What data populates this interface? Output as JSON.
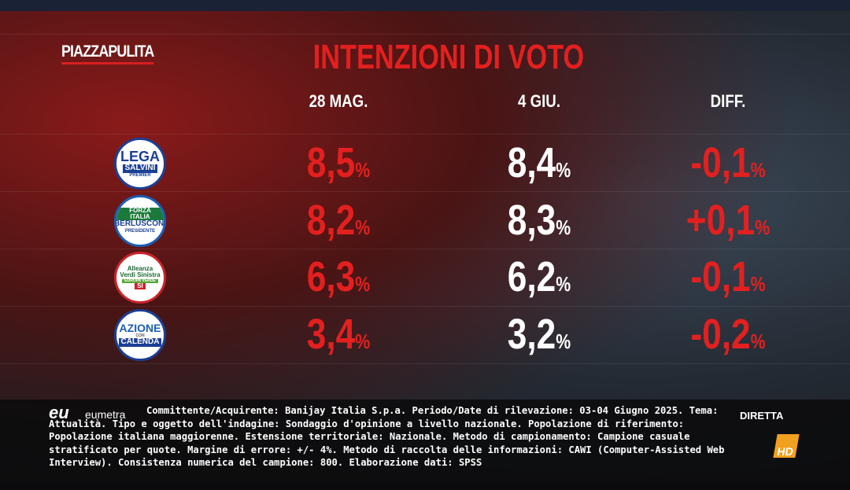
{
  "header": {
    "brand": "PIAZZAPULITA",
    "title": "INTENZIONI DI VOTO"
  },
  "table": {
    "columns": [
      "28 MAG.",
      "4 GIU.",
      "DIFF."
    ],
    "rows": [
      {
        "logo": [
          "LEGA",
          "SALVINI",
          "PREMIER"
        ],
        "cells": [
          {
            "number": "8,5",
            "unit": "%"
          },
          {
            "number": "8,4",
            "unit": "%"
          },
          {
            "number": "-0,1",
            "unit": "%"
          }
        ]
      },
      {
        "logo": [
          "FORZA ITALIA",
          "BERLUSCONI",
          "PRESIDENTE"
        ],
        "cells": [
          {
            "number": "8,2",
            "unit": "%"
          },
          {
            "number": "8,3",
            "unit": "%"
          },
          {
            "number": "+0,1",
            "unit": "%"
          }
        ]
      },
      {
        "logo": [
          "Alleanza Verdi Sinistra",
          "EUROPA VERDE",
          "SI"
        ],
        "cells": [
          {
            "number": "6,3",
            "unit": "%"
          },
          {
            "number": "6,2",
            "unit": "%"
          },
          {
            "number": "-0,1",
            "unit": "%"
          }
        ]
      },
      {
        "logo": [
          "AZIONE",
          "CON",
          "CALENDA"
        ],
        "cells": [
          {
            "number": "3,4",
            "unit": "%"
          },
          {
            "number": "3,2",
            "unit": "%"
          },
          {
            "number": "-0,2",
            "unit": "%"
          }
        ]
      }
    ]
  },
  "footer": {
    "logo": "eu",
    "logo_name": "eumetra",
    "note": "Committente/Acquirente: Banijay Italia S.p.a. Periodo/Date di rilevazione: 03-04 Giugno 2025. Tema: Attualità. Tipo e oggetto dell'indagine: Sondaggio d'opinione a livello nazionale. Popolazione di riferimento: Popolazione italiana maggiorenne. Estensione territoriale: Nazionale. Metodo di campionamento: Campione casuale stratificato per quote. Margine di errore: +/- 4%. Metodo di raccolta delle informazioni: CAWI (Computer-Assisted Web Interview). Consistenza numerica del campione: 800. Elaborazione dati: SPSS",
    "channel": "DIRETTA",
    "hd": "HD"
  }
}
